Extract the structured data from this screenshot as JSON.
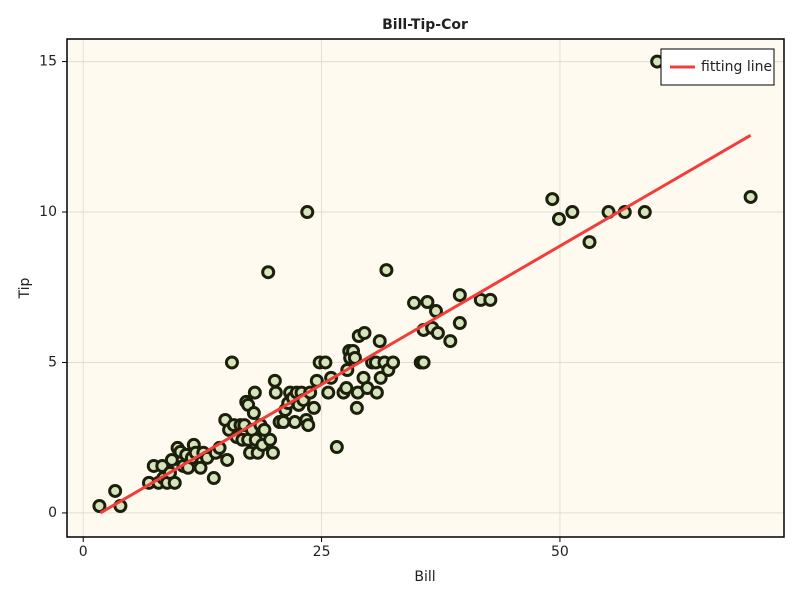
{
  "chart_data": {
    "type": "scatter",
    "title": "Bill-Tip-Cor",
    "x_label": "Bill",
    "y_label": "Tip",
    "x": [
      1.7,
      3.35,
      3.9,
      6.9,
      7.4,
      7.9,
      8.4,
      8.3,
      8.8,
      9.1,
      9.3,
      9.6,
      9.9,
      10.2,
      10.5,
      10.8,
      11.0,
      11.4,
      11.6,
      11.8,
      12.3,
      12.6,
      13.0,
      13.7,
      13.9,
      14.3,
      14.9,
      15.1,
      15.3,
      15.6,
      15.8,
      16.1,
      16.5,
      16.7,
      16.9,
      17.1,
      17.3,
      17.3,
      17.5,
      17.7,
      17.9,
      18.0,
      18.1,
      18.3,
      18.6,
      18.8,
      19.0,
      19.4,
      19.6,
      19.9,
      20.1,
      20.2,
      20.6,
      21.0,
      21.2,
      21.5,
      21.7,
      22.0,
      22.2,
      22.4,
      22.6,
      22.9,
      23.1,
      23.4,
      23.5,
      23.6,
      23.8,
      24.2,
      24.5,
      24.8,
      25.4,
      25.7,
      26.0,
      26.6,
      27.3,
      27.6,
      27.7,
      27.9,
      28.0,
      28.3,
      28.5,
      28.7,
      28.8,
      28.9,
      29.4,
      29.5,
      29.8,
      30.3,
      30.7,
      30.8,
      31.1,
      31.2,
      31.6,
      31.8,
      32.0,
      32.5,
      34.7,
      35.4,
      35.7,
      35.7,
      36.1,
      36.6,
      37.0,
      37.2,
      38.5,
      39.5,
      39.5,
      41.7,
      42.7,
      49.2,
      49.9,
      51.3,
      53.1,
      55.1,
      56.8,
      58.9,
      60.2,
      70.0
    ],
    "y": [
      0.23,
      0.73,
      0.23,
      1.0,
      1.56,
      1.0,
      1.16,
      1.56,
      1.0,
      1.33,
      1.76,
      1.0,
      2.16,
      2.03,
      1.56,
      1.93,
      1.5,
      1.83,
      2.26,
      2.0,
      1.5,
      2.0,
      1.83,
      1.16,
      2.0,
      2.16,
      3.09,
      1.76,
      2.76,
      5.0,
      2.92,
      2.52,
      2.92,
      2.43,
      2.92,
      3.69,
      3.59,
      2.43,
      2.0,
      2.76,
      3.32,
      4.0,
      2.43,
      2.0,
      2.92,
      2.26,
      2.76,
      8.0,
      2.43,
      2.0,
      4.39,
      4.0,
      3.02,
      3.02,
      3.42,
      3.65,
      4.0,
      3.82,
      3.02,
      4.0,
      3.59,
      4.0,
      3.75,
      3.09,
      10.0,
      2.92,
      4.0,
      3.49,
      4.39,
      5.0,
      5.0,
      4.0,
      4.49,
      2.19,
      4.0,
      4.15,
      4.75,
      5.38,
      5.15,
      5.38,
      5.15,
      3.49,
      4.0,
      5.88,
      4.49,
      5.98,
      4.15,
      5.0,
      5.0,
      4.0,
      5.71,
      4.49,
      5.0,
      8.07,
      4.75,
      5.0,
      6.98,
      5.0,
      5.0,
      6.08,
      7.01,
      6.15,
      6.71,
      5.98,
      5.71,
      7.24,
      6.31,
      7.08,
      7.08,
      10.43,
      9.77,
      10.0,
      9.0,
      10.0,
      10.0,
      10.0,
      15.0,
      10.5
    ],
    "color": "#d5e4bd",
    "edge_color": "#1c1f0a",
    "fit": {
      "name": "fitting line",
      "color": "#f23d3a",
      "x": [
        1.8,
        70.0
      ],
      "y": [
        0.0,
        12.55
      ]
    },
    "xlim": [
      -1.7,
      73.5
    ],
    "ylim": [
      -0.8,
      15.75
    ],
    "xticks": [
      0,
      25,
      50
    ],
    "yticks": [
      0,
      5,
      10,
      15
    ],
    "grid": true,
    "legend": "top-right"
  }
}
